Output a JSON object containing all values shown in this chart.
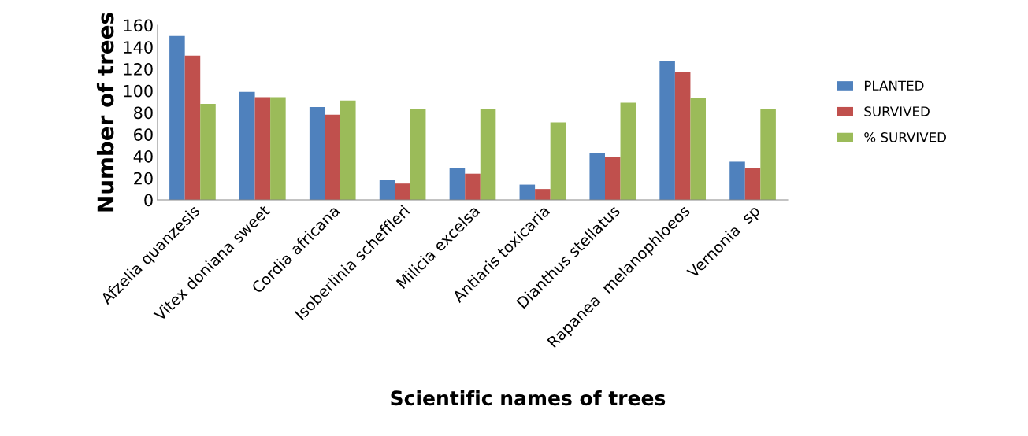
{
  "chart_data": {
    "type": "bar",
    "categories": [
      "Afzelia quanzesis",
      "Vitex doniana sweet",
      "Cordia africana",
      "Isoberlinia scheffleri",
      "Milicia excelsa",
      "Antiaris toxicaria",
      "Dianthus stellatus",
      "Rapanea  melanophloeos",
      "Vernonia  sp"
    ],
    "series": [
      {
        "name": "PLANTED",
        "color": "#4f81bd",
        "values": [
          150,
          99,
          85,
          18,
          29,
          14,
          43,
          127,
          35
        ]
      },
      {
        "name": "SURVIVED",
        "color": "#c0504d",
        "values": [
          132,
          94,
          78,
          15,
          24,
          10,
          39,
          117,
          29
        ]
      },
      {
        "name": "% SURVIVED",
        "color": "#9bbb59",
        "values": [
          88,
          94,
          91,
          83,
          83,
          71,
          89,
          93,
          83
        ]
      }
    ],
    "xlabel": "Scientific names of trees",
    "ylabel": "Number of trees",
    "ylim": [
      0,
      160
    ],
    "yticks": [
      0,
      20,
      40,
      60,
      80,
      100,
      120,
      140,
      160
    ],
    "grid": false,
    "legend": "right"
  }
}
